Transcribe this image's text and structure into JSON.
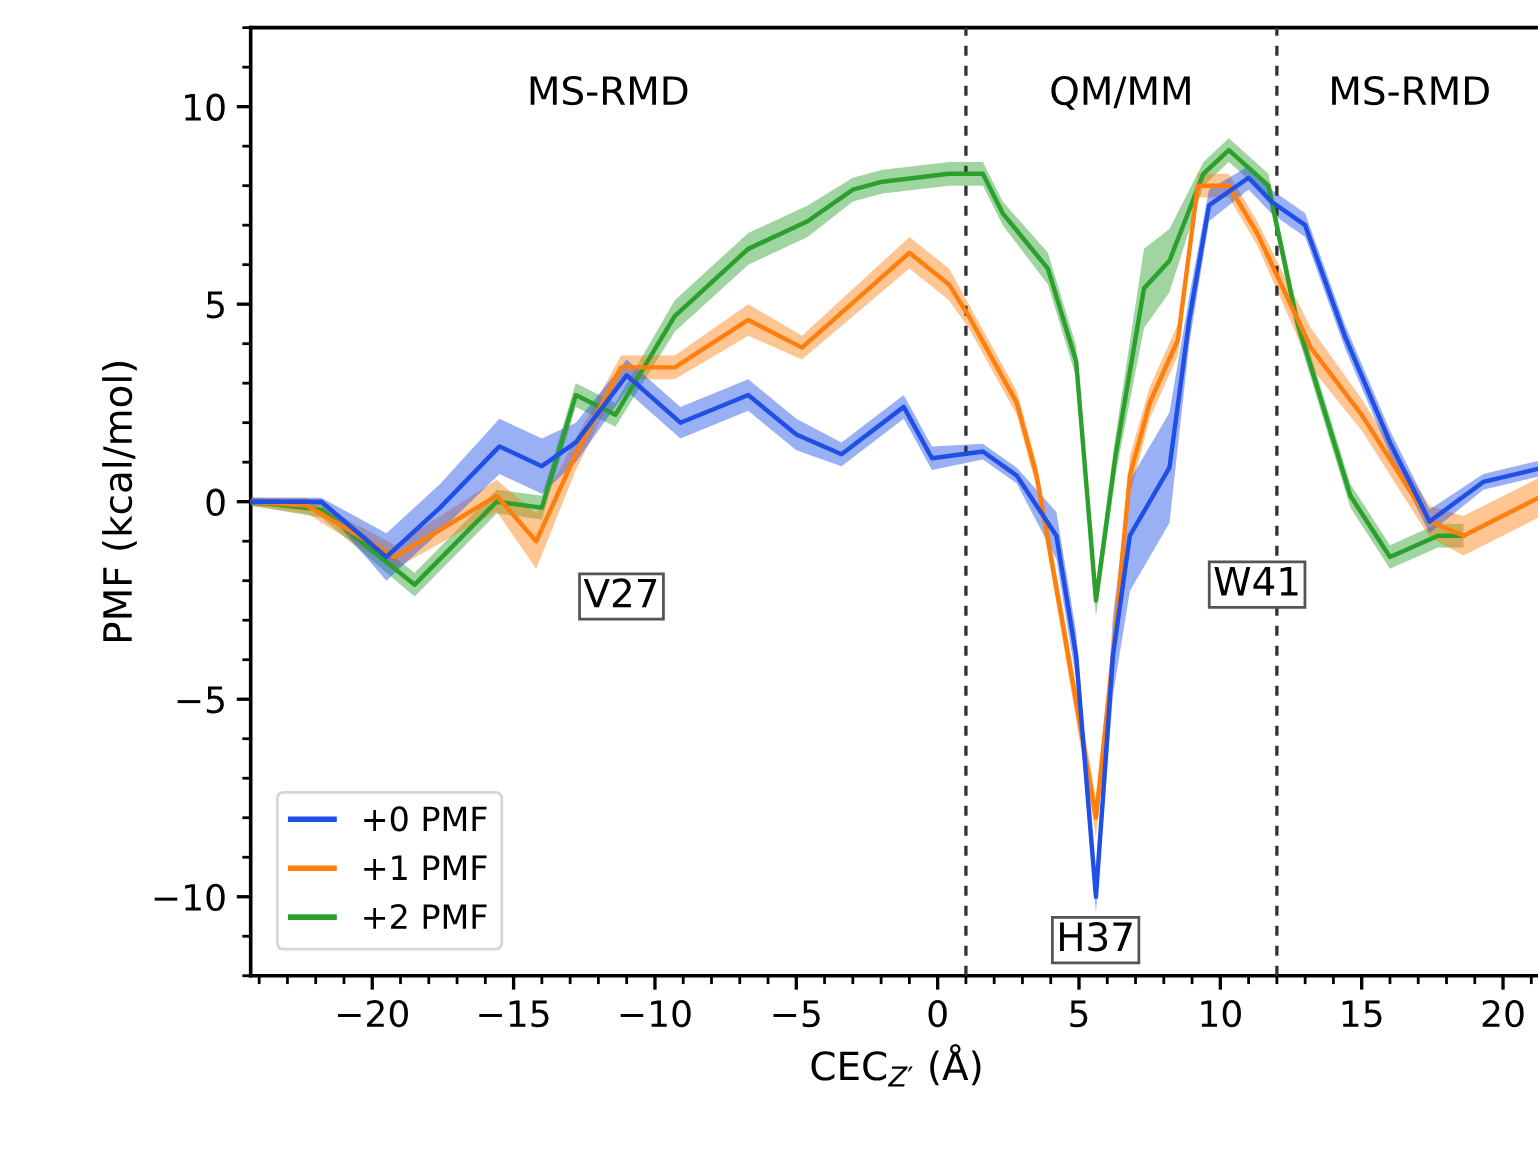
{
  "chart_data": {
    "type": "line",
    "xlabel": "CEC$_{Z′}$ (Å)",
    "ylabel": "PMF (kcal/mol)",
    "xlim": [
      -24.3,
      21.4
    ],
    "ylim": [
      -12,
      12
    ],
    "xticks": [
      {
        "value": -24,
        "label": null
      },
      {
        "value": -23,
        "label": null
      },
      {
        "value": -22,
        "label": null
      },
      {
        "value": -21,
        "label": null
      },
      {
        "value": -20,
        "label": "−20"
      },
      {
        "value": -19,
        "label": null
      },
      {
        "value": -18,
        "label": null
      },
      {
        "value": -17,
        "label": null
      },
      {
        "value": -16,
        "label": null
      },
      {
        "value": -15,
        "label": "−15"
      },
      {
        "value": -14,
        "label": null
      },
      {
        "value": -13,
        "label": null
      },
      {
        "value": -12,
        "label": null
      },
      {
        "value": -11,
        "label": null
      },
      {
        "value": -10,
        "label": "−10"
      },
      {
        "value": -9,
        "label": null
      },
      {
        "value": -8,
        "label": null
      },
      {
        "value": -7,
        "label": null
      },
      {
        "value": -6,
        "label": null
      },
      {
        "value": -5,
        "label": "−5"
      },
      {
        "value": -4,
        "label": null
      },
      {
        "value": -3,
        "label": null
      },
      {
        "value": -2,
        "label": null
      },
      {
        "value": -1,
        "label": null
      },
      0,
      {
        "value": 1,
        "label": null
      },
      {
        "value": 2,
        "label": null
      },
      {
        "value": 3,
        "label": null
      },
      {
        "value": 4,
        "label": null
      },
      5,
      {
        "value": 6,
        "label": null
      },
      {
        "value": 7,
        "label": null
      },
      {
        "value": 8,
        "label": null
      },
      {
        "value": 9,
        "label": null
      },
      10,
      {
        "value": 11,
        "label": null
      },
      {
        "value": 12,
        "label": null
      },
      {
        "value": 13,
        "label": null
      },
      {
        "value": 14,
        "label": null
      },
      15,
      {
        "value": 16,
        "label": null
      },
      {
        "value": 17,
        "label": null
      },
      {
        "value": 18,
        "label": null
      },
      {
        "value": 19,
        "label": null
      },
      20,
      {
        "value": 21,
        "label": null
      }
    ],
    "yticks": [
      {
        "value": -12,
        "label": null
      },
      {
        "value": -11,
        "label": null
      },
      {
        "value": -10,
        "label": "−10"
      },
      {
        "value": -9,
        "label": null
      },
      {
        "value": -8,
        "label": null
      },
      {
        "value": -7,
        "label": null
      },
      {
        "value": -6,
        "label": null
      },
      {
        "value": -5,
        "label": "−5"
      },
      {
        "value": -4,
        "label": null
      },
      {
        "value": -3,
        "label": null
      },
      {
        "value": -2,
        "label": null
      },
      {
        "value": -1,
        "label": null
      },
      0,
      {
        "value": 1,
        "label": null
      },
      {
        "value": 2,
        "label": null
      },
      {
        "value": 3,
        "label": null
      },
      {
        "value": 4,
        "label": null
      },
      5,
      {
        "value": 6,
        "label": null
      },
      {
        "value": 7,
        "label": null
      },
      {
        "value": 8,
        "label": null
      },
      {
        "value": 9,
        "label": null
      },
      10,
      {
        "value": 11,
        "label": null
      },
      {
        "value": 12,
        "label": null
      }
    ],
    "grid": false,
    "legend": "bottom left",
    "line_style": "solid",
    "ref_lines": [
      {
        "axis": "x",
        "value": 1,
        "color": "#333333",
        "line_style": "dashed"
      },
      {
        "axis": "x",
        "value": 12,
        "color": "#333333",
        "line_style": "dashed"
      }
    ],
    "annotations": [
      "MS-RMD",
      "QM/MM",
      "MS-RMD",
      "V27",
      "H37",
      "W41"
    ],
    "series": [
      {
        "name": "+0 PMF",
        "color": "#1f4fe6",
        "x": [
          -24.3,
          -21.8,
          -19.5,
          -17.6,
          -15.5,
          -14,
          -12.8,
          -11,
          -9.1,
          -6.7,
          -5,
          -3.4,
          -1.2,
          -0.2,
          1.6,
          2.8,
          4.2,
          4.9,
          5.6,
          6.2,
          6.8,
          8.2,
          8.9,
          9.6,
          11,
          11.8,
          13,
          14.4,
          16,
          17.4,
          19.3,
          21.4
        ],
        "values": [
          0,
          0,
          -1.4,
          -0.15,
          1.4,
          0.9,
          1.5,
          3.2,
          2.0,
          2.7,
          1.7,
          1.2,
          2.4,
          1.1,
          1.27,
          0.66,
          -0.86,
          -3.9,
          -10,
          -3.9,
          -0.86,
          0.86,
          4.6,
          7.5,
          8.2,
          7.6,
          7.0,
          4.2,
          1.5,
          -0.5,
          0.5,
          0.86
        ],
        "lower": [
          -0.1,
          -0.1,
          -2.0,
          -0.75,
          0.7,
          0.2,
          1.0,
          2.8,
          1.6,
          2.3,
          1.3,
          0.9,
          2.1,
          0.8,
          1.07,
          0.46,
          -1.46,
          -4.5,
          -10.4,
          -4.9,
          -2.26,
          -0.54,
          4.0,
          7.1,
          7.9,
          7.3,
          6.7,
          3.9,
          1.2,
          -0.8,
          0.3,
          0.66
        ],
        "upper": [
          0.1,
          0.1,
          -0.8,
          0.45,
          2.1,
          1.6,
          2.0,
          3.6,
          2.4,
          3.1,
          2.1,
          1.5,
          2.7,
          1.4,
          1.47,
          0.86,
          -0.26,
          -3.3,
          -9.6,
          -2.9,
          0.54,
          2.26,
          5.2,
          7.9,
          8.5,
          7.9,
          7.3,
          4.5,
          1.8,
          -0.2,
          0.7,
          1.06
        ]
      },
      {
        "name": "+1 PMF",
        "color": "#ff7f0e",
        "x": [
          -24.3,
          -22.3,
          -19.2,
          -15.6,
          -14.2,
          -12.8,
          -11.2,
          -9.3,
          -6.7,
          -4.8,
          -1.0,
          0.4,
          1.1,
          2.8,
          3.5,
          4.4,
          5.6,
          6.2,
          6.8,
          7.5,
          8.5,
          9.2,
          10.3,
          11.3,
          13.2,
          15,
          17.4,
          18.6,
          21.4
        ],
        "values": [
          0,
          -0.1,
          -1.4,
          0.15,
          -1.0,
          1.2,
          3.4,
          3.4,
          4.6,
          3.9,
          6.3,
          5.5,
          4.7,
          2.5,
          0.66,
          -3,
          -8.0,
          -3.9,
          0.66,
          2.5,
          4.1,
          8.0,
          8.0,
          6.8,
          3.9,
          2.2,
          -0.5,
          -0.86,
          0.15
        ],
        "lower": [
          -0.1,
          -0.3,
          -1.7,
          -0.25,
          -1.7,
          0.8,
          3.1,
          3.1,
          4.2,
          3.6,
          5.9,
          5.1,
          4.4,
          2.2,
          0.36,
          -3.4,
          -8.5,
          -4.4,
          0.16,
          2.1,
          3.7,
          7.7,
          7.7,
          6.5,
          3.4,
          1.8,
          -0.9,
          -1.36,
          -0.35
        ],
        "upper": [
          0.1,
          0.1,
          -1.1,
          0.55,
          -0.3,
          1.6,
          3.7,
          3.7,
          5.0,
          4.2,
          6.7,
          5.9,
          5.0,
          2.8,
          0.96,
          -2.6,
          -7.5,
          -3.4,
          1.16,
          2.9,
          4.5,
          8.3,
          8.3,
          7.1,
          4.4,
          2.6,
          -0.1,
          -0.36,
          0.65
        ]
      },
      {
        "name": "+2 PMF",
        "color": "#2ca02c",
        "x": [
          -24.3,
          -21.8,
          -18.5,
          -15.6,
          -14,
          -12.8,
          -11.4,
          -9.3,
          -6.7,
          -4.6,
          -3,
          -1.95,
          0.4,
          1.6,
          2.3,
          3.9,
          4.9,
          5.6,
          6.3,
          7.3,
          8.2,
          9.4,
          10.3,
          11.7,
          12.7,
          14.6,
          16,
          17.7,
          18.6
        ],
        "values": [
          0,
          -0.2,
          -2.1,
          0,
          -0.15,
          2.7,
          2.2,
          4.7,
          6.4,
          7.1,
          7.9,
          8.1,
          8.3,
          8.3,
          7.3,
          5.9,
          3.55,
          -2.5,
          1.2,
          5.4,
          6.1,
          8.3,
          8.9,
          8.0,
          4.6,
          0.15,
          -1.4,
          -0.86,
          -0.86
        ],
        "lower": [
          -0.1,
          -0.4,
          -2.4,
          -0.3,
          -0.45,
          2.4,
          1.9,
          4.3,
          6.0,
          6.7,
          7.6,
          7.8,
          8.0,
          8.0,
          7.0,
          5.5,
          3.15,
          -2.9,
          0.7,
          4.4,
          5.3,
          8.0,
          8.6,
          7.7,
          4.3,
          -0.15,
          -1.7,
          -1.16,
          -1.16
        ],
        "upper": [
          0.1,
          0.0,
          -1.8,
          0.3,
          0.15,
          3.0,
          2.5,
          5.1,
          6.8,
          7.5,
          8.2,
          8.4,
          8.6,
          8.6,
          7.6,
          6.3,
          3.95,
          -2.1,
          1.7,
          6.4,
          6.9,
          8.6,
          9.2,
          8.3,
          4.9,
          0.45,
          -1.1,
          -0.56,
          -0.56
        ]
      }
    ]
  }
}
